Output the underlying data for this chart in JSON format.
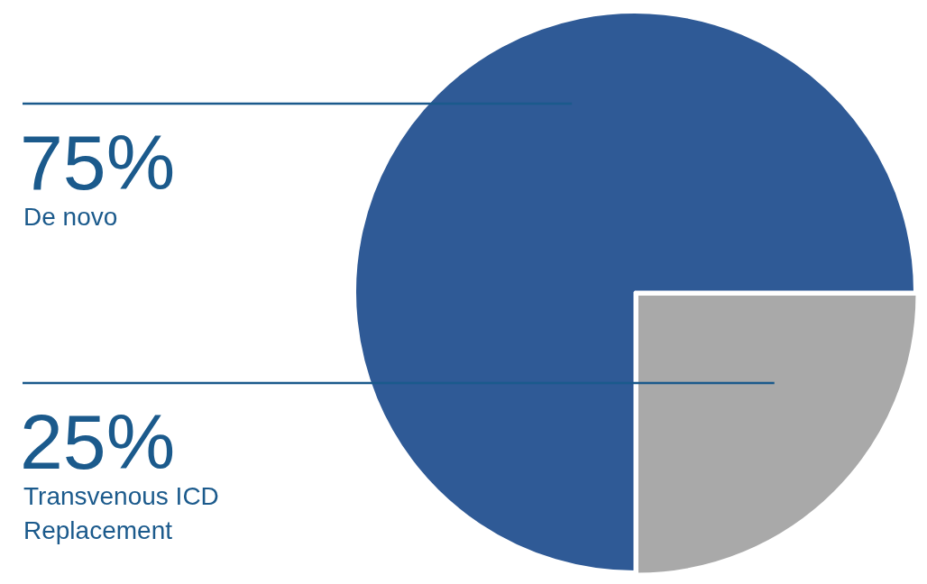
{
  "chart_data": {
    "type": "pie",
    "categories": [
      "De novo",
      "Transvenous ICD Replacement"
    ],
    "values": [
      75,
      25
    ],
    "value_labels": [
      "75%",
      "25%"
    ],
    "colors": [
      "#2f5a96",
      "#a9a9a9"
    ]
  }
}
